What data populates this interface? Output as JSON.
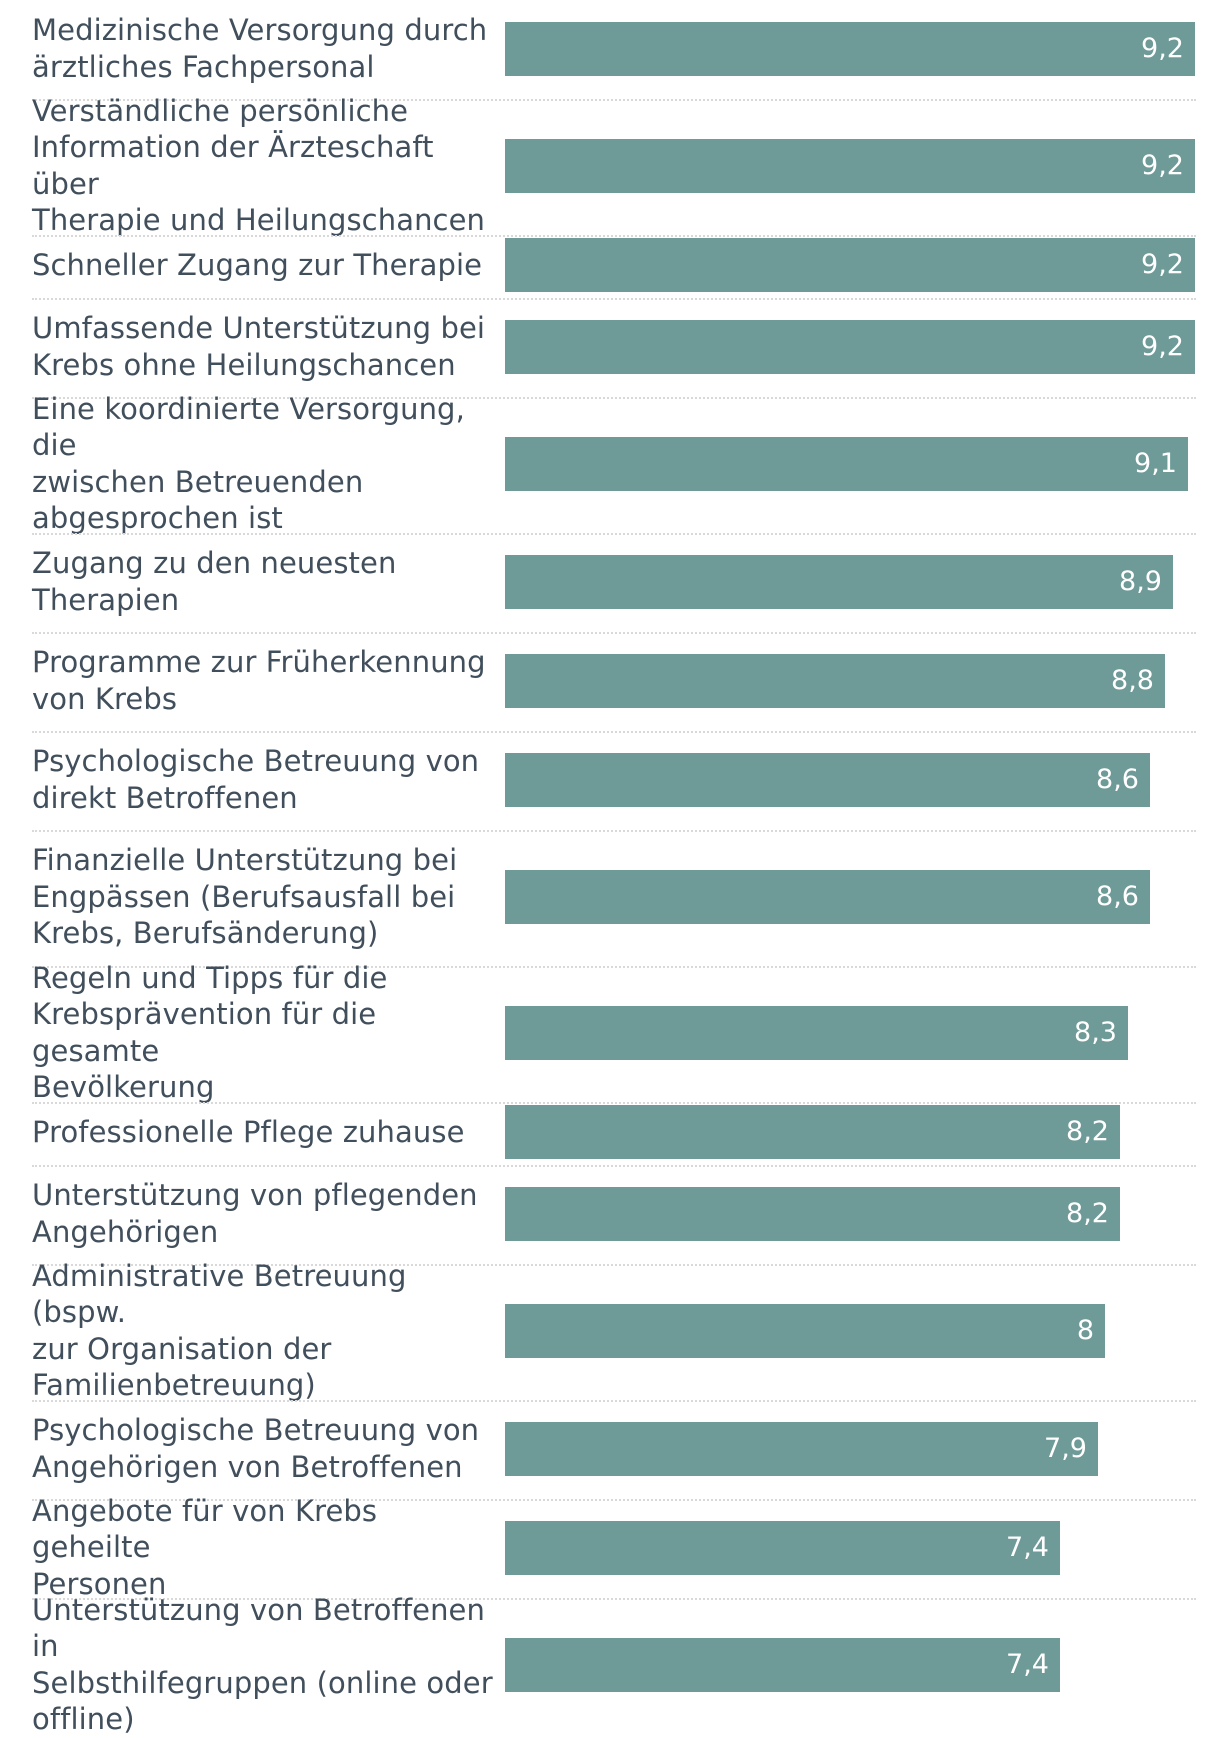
{
  "chart_data": {
    "type": "bar",
    "orientation": "horizontal",
    "title": "",
    "xlabel": "",
    "ylabel": "",
    "xlim": [
      0,
      9.2
    ],
    "bar_color": "#6e9a98",
    "label_color": "#414f5c",
    "value_color": "#ffffff",
    "categories": [
      "Medizinische Versorgung durch ärztliches Fachpersonal",
      "Verständliche persönliche Information der Ärzteschaft über Therapie und Heilungschancen",
      "Schneller Zugang zur Therapie",
      "Umfassende Unterstützung bei Krebs ohne Heilungschancen",
      "Eine koordinierte Versorgung, die zwischen Betreuenden abgesprochen ist",
      "Zugang zu den neuesten Therapien",
      "Programme zur Früherkennung von Krebs",
      "Psychologische Betreuung von direkt Betroffenen",
      "Finanzielle Unterstützung bei Engpässen (Berufsausfall bei Krebs, Berufsänderung)",
      "Regeln und Tipps für die Krebsprävention für die gesamte Bevölkerung",
      "Professionelle Pflege zuhause",
      "Unterstützung von pflegenden Angehörigen",
      "Administrative Betreuung (bspw. zur Organisation der Familienbetreuung)",
      "Psychologische Betreuung von Angehörigen von Betroffenen",
      "Angebote für von Krebs geheilte Personen",
      "Unterstützung von Betroffenen in Selbsthilfegruppen (online oder offline)"
    ],
    "values": [
      9.2,
      9.2,
      9.2,
      9.2,
      9.1,
      8.9,
      8.8,
      8.6,
      8.6,
      8.3,
      8.2,
      8.2,
      8,
      7.9,
      7.4,
      7.4
    ],
    "value_labels": [
      "9,2",
      "9,2",
      "9,2",
      "9,2",
      "9,1",
      "8,9",
      "8,8",
      "8,6",
      "8,6",
      "8,3",
      "8,2",
      "8,2",
      "8",
      "7,9",
      "7,4",
      "7,4"
    ],
    "label_lines": [
      [
        "Medizinische Versorgung durch",
        "ärztliches Fachpersonal"
      ],
      [
        "Verständliche persönliche",
        "Information der Ärzteschaft über",
        "Therapie und Heilungschancen"
      ],
      [
        "Schneller Zugang zur Therapie"
      ],
      [
        "Umfassende Unterstützung bei",
        "Krebs ohne Heilungschancen"
      ],
      [
        "Eine koordinierte Versorgung, die",
        "zwischen Betreuenden",
        "abgesprochen ist"
      ],
      [
        "Zugang zu den neuesten",
        "Therapien"
      ],
      [
        "Programme zur Früherkennung",
        "von Krebs"
      ],
      [
        "Psychologische Betreuung von",
        "direkt Betroffenen"
      ],
      [
        "Finanzielle Unterstützung bei",
        "Engpässen (Berufsausfall bei",
        "Krebs, Berufsänderung)"
      ],
      [
        "Regeln und Tipps für die",
        "Krebsprävention für die gesamte",
        "Bevölkerung"
      ],
      [
        "Professionelle Pflege zuhause"
      ],
      [
        "Unterstützung von pflegenden",
        "Angehörigen"
      ],
      [
        "Administrative Betreuung (bspw.",
        "zur Organisation der",
        "Familienbetreuung)"
      ],
      [
        "Psychologische Betreuung von",
        "Angehörigen von Betroffenen"
      ],
      [
        "Angebote für von Krebs geheilte",
        "Personen"
      ],
      [
        "Unterstützung von Betroffenen in",
        "Selbsthilfegruppen (online oder",
        "offline)"
      ]
    ]
  }
}
